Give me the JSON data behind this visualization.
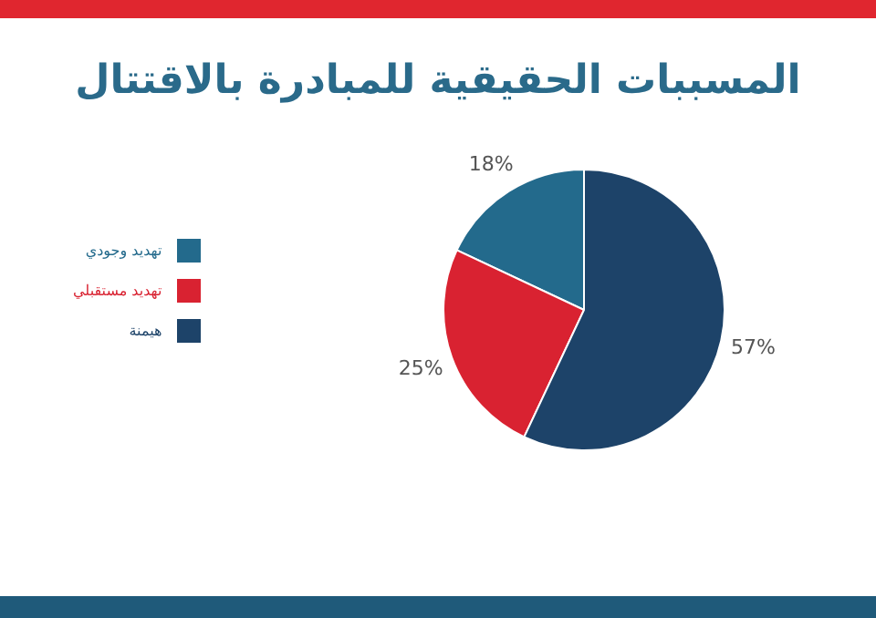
{
  "chart_data": {
    "type": "pie",
    "title": "المسببات الحقيقية للمبادرة بالاقتتال",
    "categories": [
      "تهديد وجودي",
      "تهديد مستقبلي",
      "هيمنة"
    ],
    "values": [
      18,
      25,
      57
    ],
    "value_labels": [
      "18%",
      "25%",
      "57%"
    ],
    "colors": [
      "#236a8c",
      "#d92231",
      "#1d4369"
    ],
    "legend": "left"
  }
}
